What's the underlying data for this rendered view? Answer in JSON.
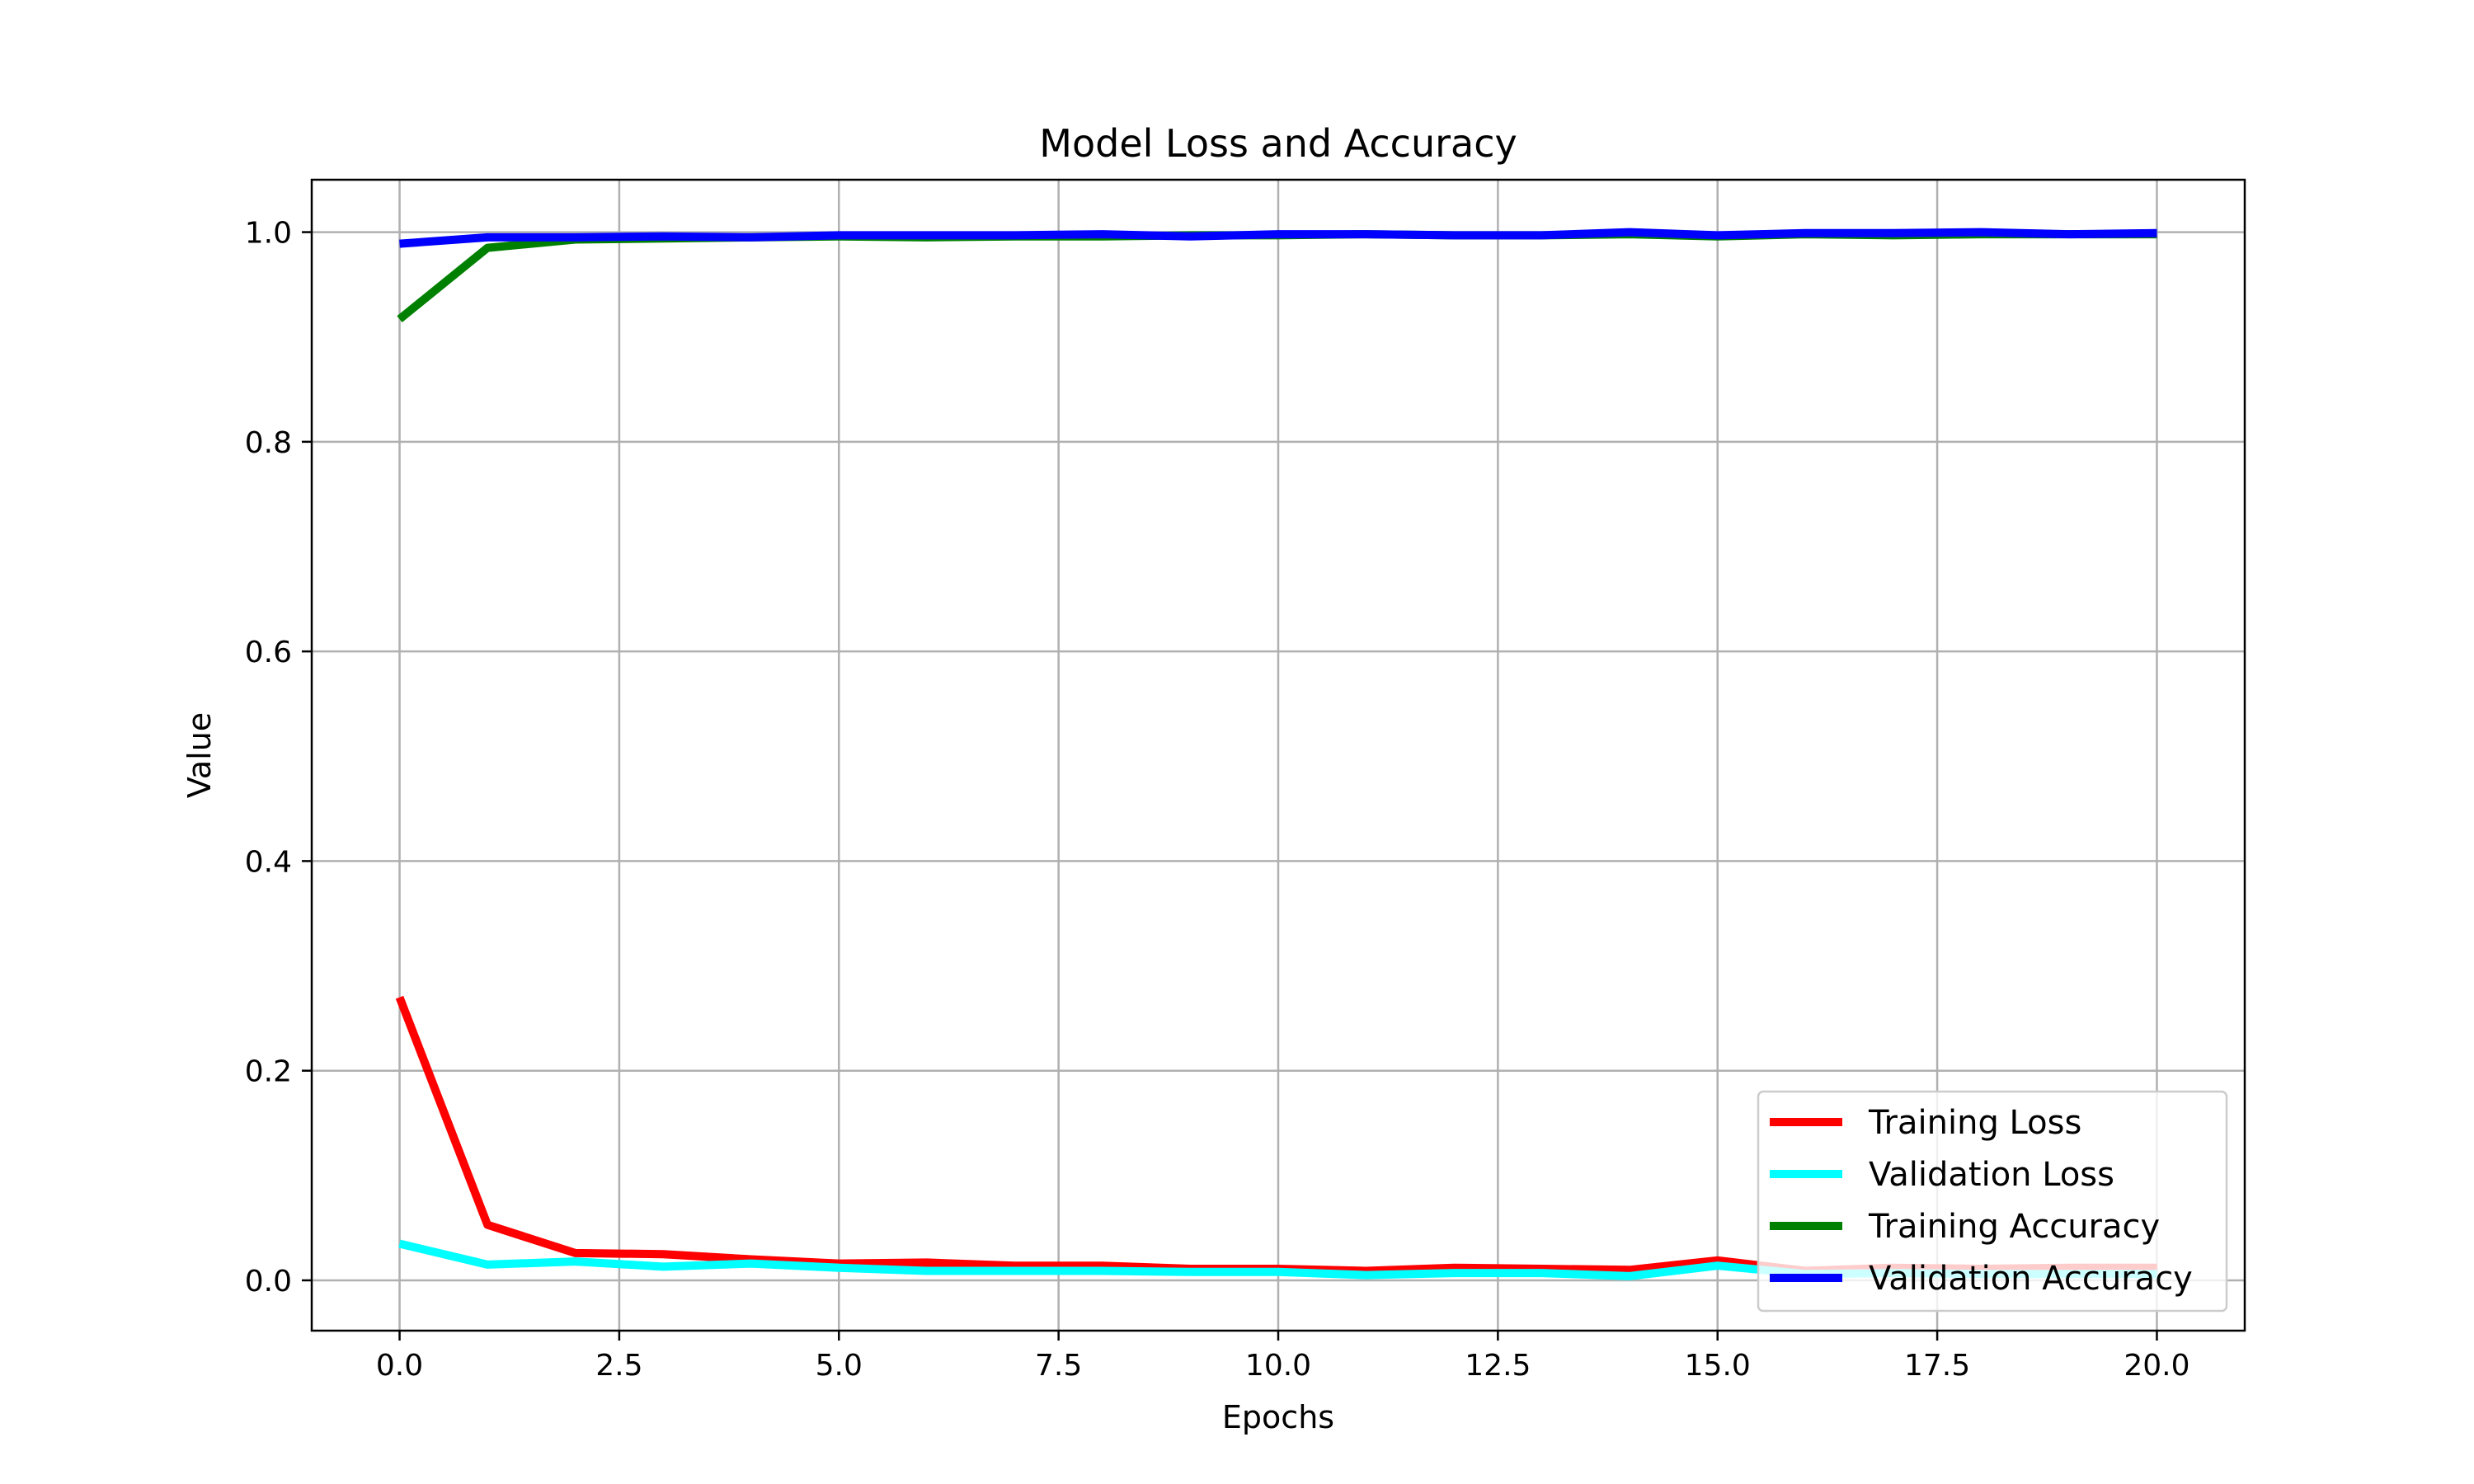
{
  "chart_data": {
    "type": "line",
    "title": "Model Loss and Accuracy",
    "xlabel": "Epochs",
    "ylabel": "Value",
    "xlim": [
      -1.0,
      21.0
    ],
    "ylim": [
      -0.048,
      1.05
    ],
    "xticks": [
      0.0,
      2.5,
      5.0,
      7.5,
      10.0,
      12.5,
      15.0,
      17.5,
      20.0
    ],
    "xtick_labels": [
      "0.0",
      "2.5",
      "5.0",
      "7.5",
      "10.0",
      "12.5",
      "15.0",
      "17.5",
      "20.0"
    ],
    "yticks": [
      0.0,
      0.2,
      0.4,
      0.6,
      0.8,
      1.0
    ],
    "ytick_labels": [
      "0.0",
      "0.2",
      "0.4",
      "0.6",
      "0.8",
      "1.0"
    ],
    "grid": true,
    "legend_position": "lower-right",
    "x": [
      0,
      1,
      2,
      3,
      4,
      5,
      6,
      7,
      8,
      9,
      10,
      11,
      12,
      13,
      14,
      15,
      16,
      17,
      18,
      19,
      20
    ],
    "series": [
      {
        "name": "Training Loss",
        "color": "#ff0000",
        "values": [
          0.27,
          0.053,
          0.026,
          0.025,
          0.02,
          0.016,
          0.017,
          0.014,
          0.014,
          0.011,
          0.011,
          0.009,
          0.012,
          0.011,
          0.01,
          0.019,
          0.009,
          0.012,
          0.011,
          0.012,
          0.012
        ]
      },
      {
        "name": "Validation Loss",
        "color": "#00ffff",
        "values": [
          0.035,
          0.015,
          0.018,
          0.013,
          0.016,
          0.012,
          0.009,
          0.009,
          0.009,
          0.008,
          0.008,
          0.005,
          0.007,
          0.007,
          0.004,
          0.014,
          0.006,
          0.007,
          0.006,
          0.006,
          0.006
        ]
      },
      {
        "name": "Training Accuracy",
        "color": "#008000",
        "values": [
          0.917,
          0.985,
          0.993,
          0.994,
          0.995,
          0.996,
          0.995,
          0.996,
          0.996,
          0.997,
          0.997,
          0.998,
          0.997,
          0.997,
          0.998,
          0.996,
          0.998,
          0.997,
          0.998,
          0.998,
          0.998
        ]
      },
      {
        "name": "Validation Accuracy",
        "color": "#0000ff",
        "values": [
          0.989,
          0.995,
          0.995,
          0.996,
          0.995,
          0.997,
          0.997,
          0.997,
          0.998,
          0.996,
          0.998,
          0.998,
          0.997,
          0.997,
          1.0,
          0.997,
          0.999,
          0.999,
          1.0,
          0.998,
          0.999
        ]
      }
    ]
  }
}
